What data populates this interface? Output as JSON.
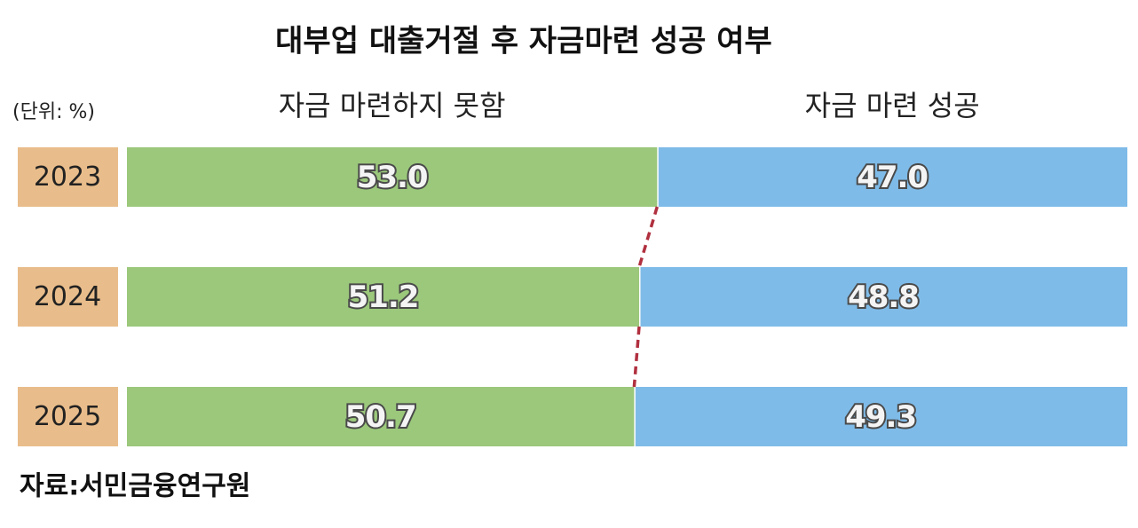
{
  "chart_data": {
    "type": "bar",
    "stacked": true,
    "orientation": "horizontal",
    "title": "대부업 대출거절 후 자금마련 성공 여부",
    "unit_label": "(단위: %)",
    "source": "자료:서민금융연구원",
    "categories": [
      "2023",
      "2024",
      "2025"
    ],
    "category_color": "#e9bd8b",
    "xlim": [
      0,
      100
    ],
    "connector_color": "#b0303f",
    "series": [
      {
        "name": "자금 마련하지 못함",
        "color": "#9bc87b",
        "values": [
          53.0,
          51.2,
          50.7
        ],
        "value_labels": [
          "53.0",
          "51.2",
          "50.7"
        ]
      },
      {
        "name": "자금 마련 성공",
        "color": "#7fbbe8",
        "values": [
          47.0,
          48.8,
          49.3
        ],
        "value_labels": [
          "47.0",
          "48.8",
          "49.3"
        ]
      }
    ]
  }
}
